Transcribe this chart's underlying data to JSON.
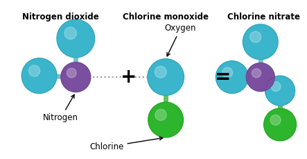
{
  "background_color": "#ffffff",
  "atom_colors": {
    "cyan": "#3ab5cc",
    "purple": "#7b4fa0",
    "green": "#2db52d",
    "bond_cyan": "#7abfcf",
    "bond_green": "#5ec45e"
  },
  "labels": {
    "chlorine": "Chlorine",
    "nitrogen": "Nitrogen",
    "oxygen": "Oxygen",
    "no2": "Nitrogen dioxide",
    "clo": "Chlorine monoxide",
    "clono2": "Chlorine nitrate"
  },
  "font_size": 8.5,
  "font_size_sym": 20
}
